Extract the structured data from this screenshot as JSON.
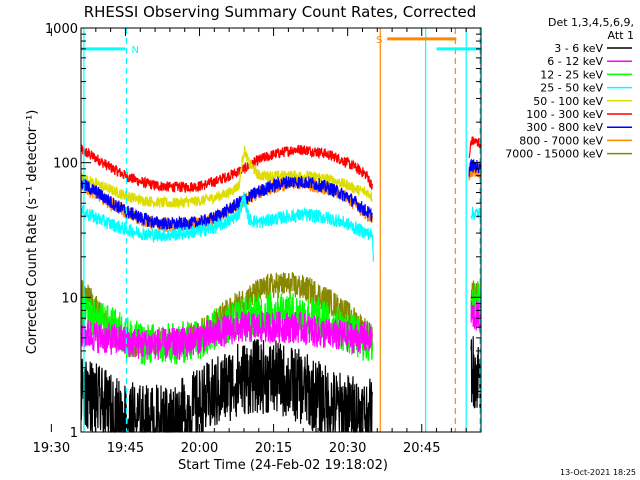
{
  "chart_data": {
    "type": "line",
    "title": "RHESSI Observing Summary Count Rates, Corrected",
    "xlabel": "Start Time (24-Feb-02 19:18:02)",
    "ylabel": "Corrected Count Rate (s⁻¹ detector⁻¹)",
    "yscale": "log",
    "ylim": [
      1,
      1000
    ],
    "xlim_min": [
      18.0,
      99.0
    ],
    "x_unit": "minutes after 19:18:02",
    "x_ticks": [
      {
        "min": 12,
        "label": "19:30"
      },
      {
        "min": 27,
        "label": "19:45"
      },
      {
        "min": 42,
        "label": "20:00"
      },
      {
        "min": 57,
        "label": "20:15"
      },
      {
        "min": 72,
        "label": "20:30"
      },
      {
        "min": 87,
        "label": "20:45"
      }
    ],
    "y_ticks": [
      {
        "value": 1,
        "label": "1"
      },
      {
        "value": 10,
        "label": "10"
      },
      {
        "value": 100,
        "label": "100"
      },
      {
        "value": 1000,
        "label": "1000"
      }
    ],
    "legend": {
      "position": "right",
      "header": [
        "Det 1,3,4,5,6,9,",
        "Att 1"
      ],
      "entries": [
        {
          "label": "3 - 6 keV",
          "color": "#000000"
        },
        {
          "label": "6 - 12 keV",
          "color": "#ff00ff"
        },
        {
          "label": "12 - 25 keV",
          "color": "#00ff00"
        },
        {
          "label": "25 - 50 keV",
          "color": "#00ffff"
        },
        {
          "label": "50 - 100 keV",
          "color": "#dddd00"
        },
        {
          "label": "100 - 300 keV",
          "color": "#ff0000"
        },
        {
          "label": "300 - 800 keV",
          "color": "#0000ff"
        },
        {
          "label": "800 - 7000 keV",
          "color": "#ff8800"
        },
        {
          "label": "7000 - 15000 keV",
          "color": "#888800"
        }
      ]
    },
    "series": [
      {
        "name": "100 - 300 keV",
        "color": "#ff0000",
        "noise": 0.04,
        "segments": [
          [
            [
              18,
              125
            ],
            [
              21,
              108
            ],
            [
              24,
              92
            ],
            [
              27,
              80
            ],
            [
              30,
              72
            ],
            [
              33,
              68
            ],
            [
              36,
              66
            ],
            [
              39,
              66
            ],
            [
              42,
              67
            ],
            [
              45,
              72
            ],
            [
              48,
              80
            ],
            [
              51,
              90
            ],
            [
              54,
              105
            ],
            [
              57,
              115
            ],
            [
              59,
              120
            ],
            [
              61,
              125
            ],
            [
              63,
              125
            ],
            [
              65,
              122
            ],
            [
              67,
              118
            ],
            [
              69,
              112
            ],
            [
              71,
              104
            ],
            [
              73,
              95
            ],
            [
              75,
              85
            ],
            [
              76,
              80
            ],
            [
              77,
              65
            ]
          ],
          [
            [
              96.6,
              105
            ],
            [
              97,
              145
            ],
            [
              99,
              140
            ]
          ]
        ]
      },
      {
        "name": "50 - 100 keV",
        "color": "#dddd00",
        "noise": 0.04,
        "segments": [
          [
            [
              18,
              78
            ],
            [
              21,
              70
            ],
            [
              24,
              63
            ],
            [
              27,
              57
            ],
            [
              30,
              53
            ],
            [
              33,
              51
            ],
            [
              36,
              50
            ],
            [
              39,
              51
            ],
            [
              42,
              52
            ],
            [
              45,
              55
            ],
            [
              48,
              60
            ],
            [
              50,
              68
            ],
            [
              51,
              125
            ],
            [
              52,
              100
            ],
            [
              54,
              80
            ],
            [
              57,
              80
            ],
            [
              60,
              80
            ],
            [
              63,
              80
            ],
            [
              66,
              78
            ],
            [
              69,
              74
            ],
            [
              72,
              68
            ],
            [
              74,
              63
            ],
            [
              76,
              60
            ],
            [
              77,
              56
            ]
          ],
          [
            [
              96.6,
              85
            ],
            [
              97,
              92
            ],
            [
              99,
              90
            ]
          ]
        ]
      },
      {
        "name": "800 - 7000 keV",
        "color": "#ff8800",
        "noise": 0.05,
        "segments": [
          [
            [
              18,
              68
            ],
            [
              21,
              59
            ],
            [
              24,
              50
            ],
            [
              27,
              43
            ],
            [
              30,
              38
            ],
            [
              33,
              35
            ],
            [
              36,
              34
            ],
            [
              39,
              34
            ],
            [
              42,
              35
            ],
            [
              45,
              38
            ],
            [
              48,
              44
            ],
            [
              51,
              52
            ],
            [
              54,
              60
            ],
            [
              57,
              66
            ],
            [
              60,
              70
            ],
            [
              63,
              70
            ],
            [
              66,
              67
            ],
            [
              69,
              62
            ],
            [
              72,
              55
            ],
            [
              74,
              47
            ],
            [
              76,
              41
            ],
            [
              77,
              38
            ]
          ],
          [
            [
              96.6,
              82
            ],
            [
              97,
              88
            ],
            [
              99,
              86
            ]
          ]
        ]
      },
      {
        "name": "300 - 800 keV",
        "color": "#0000ff",
        "noise": 0.05,
        "segments": [
          [
            [
              18,
              70
            ],
            [
              21,
              61
            ],
            [
              24,
              51
            ],
            [
              27,
              44
            ],
            [
              30,
              39
            ],
            [
              33,
              36
            ],
            [
              36,
              35
            ],
            [
              39,
              35
            ],
            [
              42,
              36
            ],
            [
              45,
              39
            ],
            [
              48,
              45
            ],
            [
              51,
              53
            ],
            [
              54,
              61
            ],
            [
              57,
              68
            ],
            [
              60,
              72
            ],
            [
              63,
              72
            ],
            [
              66,
              69
            ],
            [
              69,
              63
            ],
            [
              72,
              56
            ],
            [
              74,
              49
            ],
            [
              76,
              43
            ],
            [
              77,
              40
            ]
          ],
          [
            [
              96.6,
              88
            ],
            [
              97,
              95
            ],
            [
              99,
              93
            ]
          ]
        ]
      },
      {
        "name": "25 - 50 keV",
        "color": "#00ffff",
        "noise": 0.05,
        "segments": [
          [
            [
              18,
              44
            ],
            [
              21,
              39
            ],
            [
              24,
              35
            ],
            [
              27,
              32
            ],
            [
              30,
              30
            ],
            [
              33,
              29
            ],
            [
              36,
              29
            ],
            [
              39,
              30
            ],
            [
              42,
              31
            ],
            [
              45,
              33
            ],
            [
              48,
              37
            ],
            [
              50,
              42
            ],
            [
              51,
              56
            ],
            [
              52,
              38
            ],
            [
              54,
              36
            ],
            [
              57,
              38
            ],
            [
              60,
              40
            ],
            [
              63,
              41
            ],
            [
              66,
              40
            ],
            [
              69,
              38
            ],
            [
              72,
              35
            ],
            [
              74,
              32
            ],
            [
              76,
              30
            ],
            [
              77,
              29
            ],
            [
              77.3,
              18
            ]
          ],
          [
            [
              97,
              42
            ],
            [
              99,
              42
            ]
          ]
        ]
      },
      {
        "name": "7000 - 15000 keV",
        "color": "#888800",
        "noise": 0.1,
        "segments": [
          [
            [
              18,
              11
            ],
            [
              20,
              9.5
            ],
            [
              22,
              7.5
            ],
            [
              24,
              6
            ],
            [
              26,
              5
            ],
            [
              28,
              4.5
            ],
            [
              32,
              4.5
            ],
            [
              36,
              4.5
            ],
            [
              40,
              5
            ],
            [
              44,
              6
            ],
            [
              47,
              7.5
            ],
            [
              50,
              9
            ],
            [
              53,
              10.5
            ],
            [
              56,
              12
            ],
            [
              59,
              12.5
            ],
            [
              62,
              12
            ],
            [
              65,
              11
            ],
            [
              68,
              9.5
            ],
            [
              71,
              8
            ],
            [
              74,
              6.5
            ],
            [
              76,
              5.5
            ],
            [
              77,
              5
            ]
          ],
          [
            [
              97,
              11
            ],
            [
              99,
              10
            ]
          ]
        ]
      },
      {
        "name": "12 - 25 keV",
        "color": "#00ff00",
        "noise": 0.16,
        "segments": [
          [
            [
              18,
              7.5
            ],
            [
              22,
              6.5
            ],
            [
              26,
              5.5
            ],
            [
              30,
              4.5
            ],
            [
              34,
              4.5
            ],
            [
              38,
              4.5
            ],
            [
              42,
              5
            ],
            [
              46,
              6
            ],
            [
              50,
              7
            ],
            [
              54,
              7.5
            ],
            [
              58,
              8
            ],
            [
              62,
              7.5
            ],
            [
              66,
              7
            ],
            [
              70,
              6
            ],
            [
              74,
              5
            ],
            [
              77,
              4.5
            ]
          ],
          [
            [
              97,
              9.5
            ],
            [
              99,
              9
            ]
          ]
        ]
      },
      {
        "name": "6 - 12 keV",
        "color": "#ff00ff",
        "noise": 0.12,
        "segments": [
          [
            [
              18,
              5.5
            ],
            [
              22,
              5
            ],
            [
              26,
              4.8
            ],
            [
              30,
              4.5
            ],
            [
              34,
              4.5
            ],
            [
              38,
              4.5
            ],
            [
              42,
              5
            ],
            [
              46,
              5.5
            ],
            [
              50,
              6
            ],
            [
              54,
              6
            ],
            [
              58,
              6
            ],
            [
              62,
              6
            ],
            [
              66,
              5.5
            ],
            [
              70,
              5.2
            ],
            [
              74,
              5
            ],
            [
              77,
              5
            ]
          ],
          [
            [
              97,
              7.5
            ],
            [
              99,
              7
            ]
          ]
        ]
      },
      {
        "name": "3 - 6 keV",
        "color": "#000000",
        "noise": 0.28,
        "segments": [
          [
            [
              18,
              2.2
            ],
            [
              22,
              1.6
            ],
            [
              26,
              1.3
            ],
            [
              30,
              1.2
            ],
            [
              34,
              1.2
            ],
            [
              38,
              1.3
            ],
            [
              42,
              1.6
            ],
            [
              46,
              2
            ],
            [
              50,
              2.5
            ],
            [
              54,
              2.6
            ],
            [
              58,
              2.5
            ],
            [
              62,
              2.2
            ],
            [
              66,
              1.8
            ],
            [
              70,
              1.5
            ],
            [
              74,
              1.4
            ],
            [
              77,
              1.3
            ]
          ],
          [
            [
              97,
              3
            ],
            [
              99,
              2.5
            ]
          ]
        ]
      }
    ],
    "state_bars": [
      {
        "label": "N",
        "color": "#00ffff",
        "value": 700,
        "from": 18,
        "to": 27
      },
      {
        "label": "S",
        "color": "#ff8800",
        "value": 830,
        "from": 80,
        "to": 94
      },
      {
        "label": "",
        "color": "#00ffff",
        "value": 700,
        "from": 90,
        "to": 99
      }
    ],
    "vlines": [
      {
        "color": "#00ffff",
        "at": 18.6,
        "style": "solid"
      },
      {
        "color": "#00ffff",
        "at": 27.2,
        "style": "dashed"
      },
      {
        "color": "#ff8800",
        "at": 78.6,
        "style": "solid"
      },
      {
        "color": "#00ffff",
        "at": 87.8,
        "style": "solid"
      },
      {
        "color": "#ff8800",
        "at": 93.8,
        "style": "dashed"
      },
      {
        "color": "#00ffff",
        "at": 96.0,
        "style": "solid"
      },
      {
        "color": "#00ffff",
        "at": 98.8,
        "style": "dashed"
      }
    ]
  },
  "footer": {
    "timestamp": "13-Oct-2021 18:25"
  }
}
